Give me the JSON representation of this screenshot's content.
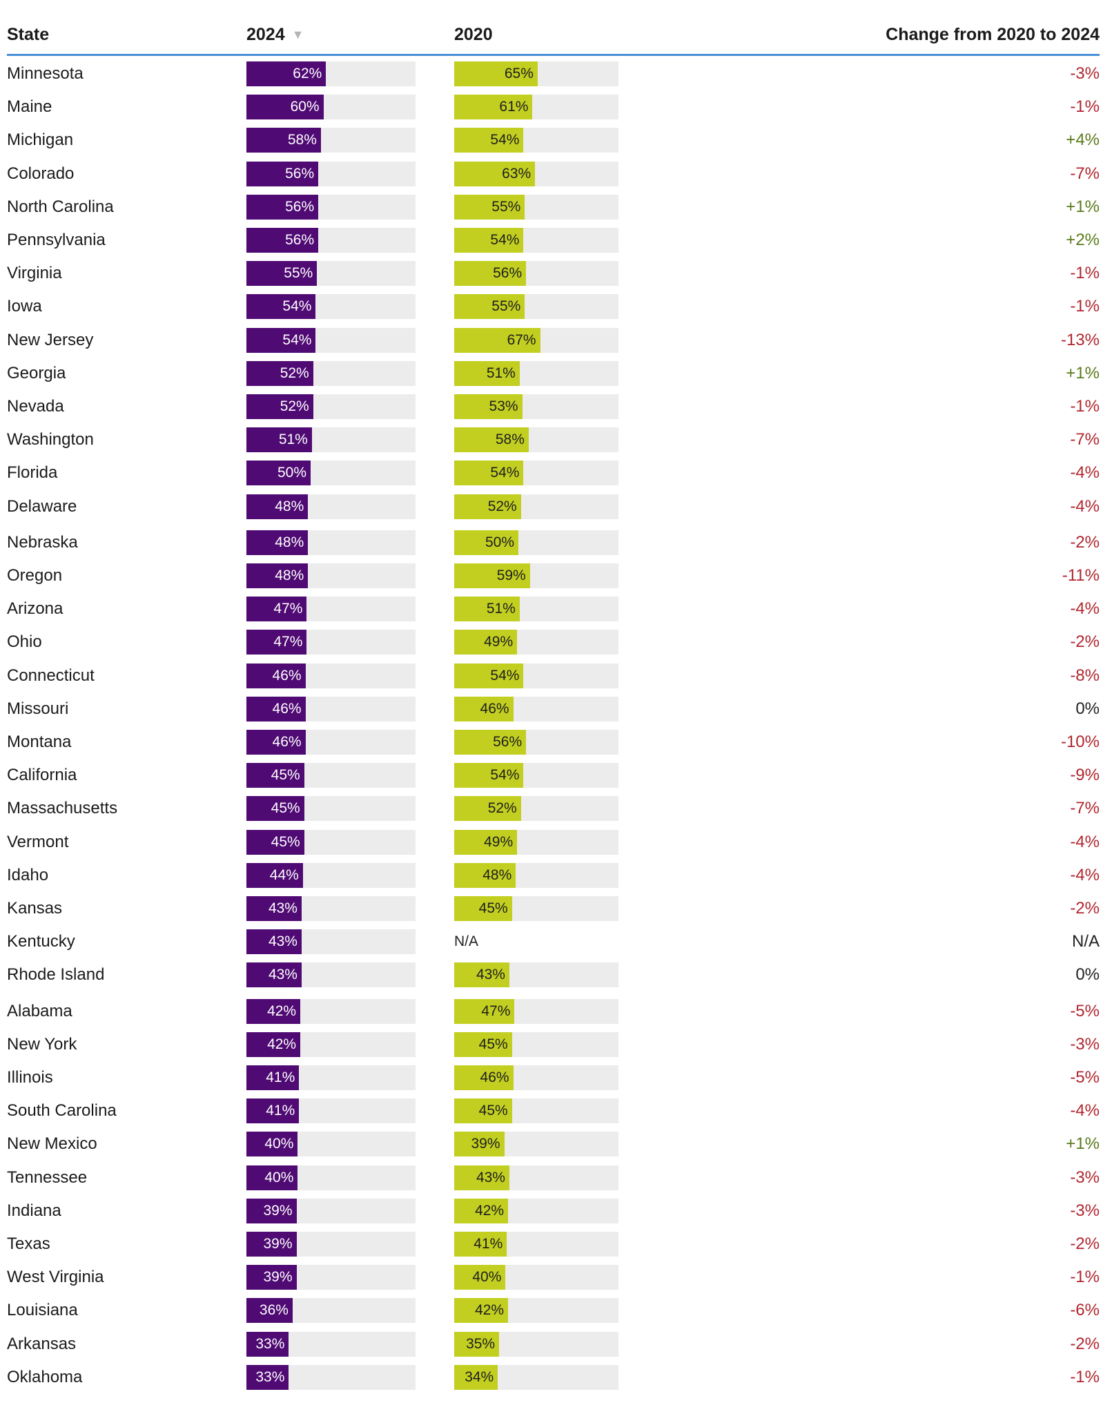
{
  "chart_data": {
    "type": "bar",
    "columns": {
      "state": "State",
      "y2024": "2024",
      "y2020": "2020",
      "change": "Change from 2020 to 2024"
    },
    "sort_indicator": "▼",
    "colors": {
      "bar_2024": "#4f0a73",
      "bar_2020": "#c2cf20",
      "track": "#ececec",
      "negative": "#b0262f",
      "positive": "#5a7a1a",
      "neutral": "#222222",
      "header_rule": "#4a90d9"
    },
    "rows": [
      {
        "state": "Minnesota",
        "v2024": 62,
        "v2020": 65,
        "l2024": "62%",
        "l2020": "65%",
        "change": "-3%"
      },
      {
        "state": "Maine",
        "v2024": 60,
        "v2020": 61,
        "l2024": "60%",
        "l2020": "61%",
        "change": "-1%"
      },
      {
        "state": "Michigan",
        "v2024": 58,
        "v2020": 54,
        "l2024": "58%",
        "l2020": "54%",
        "change": "+4%"
      },
      {
        "state": "Colorado",
        "v2024": 56,
        "v2020": 63,
        "l2024": "56%",
        "l2020": "63%",
        "change": "-7%"
      },
      {
        "state": "North Carolina",
        "v2024": 56,
        "v2020": 55,
        "l2024": "56%",
        "l2020": "55%",
        "change": "+1%"
      },
      {
        "state": "Pennsylvania",
        "v2024": 56,
        "v2020": 54,
        "l2024": "56%",
        "l2020": "54%",
        "change": "+2%"
      },
      {
        "state": "Virginia",
        "v2024": 55,
        "v2020": 56,
        "l2024": "55%",
        "l2020": "56%",
        "change": "-1%"
      },
      {
        "state": "Iowa",
        "v2024": 54,
        "v2020": 55,
        "l2024": "54%",
        "l2020": "55%",
        "change": "-1%"
      },
      {
        "state": "New Jersey",
        "v2024": 54,
        "v2020": 67,
        "l2024": "54%",
        "l2020": "67%",
        "change": "-13%"
      },
      {
        "state": "Georgia",
        "v2024": 52,
        "v2020": 51,
        "l2024": "52%",
        "l2020": "51%",
        "change": "+1%"
      },
      {
        "state": "Nevada",
        "v2024": 52,
        "v2020": 53,
        "l2024": "52%",
        "l2020": "53%",
        "change": "-1%"
      },
      {
        "state": "Washington",
        "v2024": 51,
        "v2020": 58,
        "l2024": "51%",
        "l2020": "58%",
        "change": "-7%"
      },
      {
        "state": "Florida",
        "v2024": 50,
        "v2020": 54,
        "l2024": "50%",
        "l2020": "54%",
        "change": "-4%"
      },
      {
        "state": "Delaware",
        "v2024": 48,
        "v2020": 52,
        "l2024": "48%",
        "l2020": "52%",
        "change": "-4%"
      },
      {
        "state": "Nebraska",
        "v2024": 48,
        "v2020": 50,
        "l2024": "48%",
        "l2020": "50%",
        "change": "-2%"
      },
      {
        "state": "Oregon",
        "v2024": 48,
        "v2020": 59,
        "l2024": "48%",
        "l2020": "59%",
        "change": "-11%"
      },
      {
        "state": "Arizona",
        "v2024": 47,
        "v2020": 51,
        "l2024": "47%",
        "l2020": "51%",
        "change": "-4%"
      },
      {
        "state": "Ohio",
        "v2024": 47,
        "v2020": 49,
        "l2024": "47%",
        "l2020": "49%",
        "change": "-2%"
      },
      {
        "state": "Connecticut",
        "v2024": 46,
        "v2020": 54,
        "l2024": "46%",
        "l2020": "54%",
        "change": "-8%"
      },
      {
        "state": "Missouri",
        "v2024": 46,
        "v2020": 46,
        "l2024": "46%",
        "l2020": "46%",
        "change": "0%"
      },
      {
        "state": "Montana",
        "v2024": 46,
        "v2020": 56,
        "l2024": "46%",
        "l2020": "56%",
        "change": "-10%"
      },
      {
        "state": "California",
        "v2024": 45,
        "v2020": 54,
        "l2024": "45%",
        "l2020": "54%",
        "change": "-9%"
      },
      {
        "state": "Massachusetts",
        "v2024": 45,
        "v2020": 52,
        "l2024": "45%",
        "l2020": "52%",
        "change": "-7%"
      },
      {
        "state": "Vermont",
        "v2024": 45,
        "v2020": 49,
        "l2024": "45%",
        "l2020": "49%",
        "change": "-4%"
      },
      {
        "state": "Idaho",
        "v2024": 44,
        "v2020": 48,
        "l2024": "44%",
        "l2020": "48%",
        "change": "-4%"
      },
      {
        "state": "Kansas",
        "v2024": 43,
        "v2020": 45,
        "l2024": "43%",
        "l2020": "45%",
        "change": "-2%"
      },
      {
        "state": "Kentucky",
        "v2024": 43,
        "v2020": null,
        "l2024": "43%",
        "l2020": "N/A",
        "change": "N/A"
      },
      {
        "state": "Rhode Island",
        "v2024": 43,
        "v2020": 43,
        "l2024": "43%",
        "l2020": "43%",
        "change": "0%"
      },
      {
        "state": "Alabama",
        "v2024": 42,
        "v2020": 47,
        "l2024": "42%",
        "l2020": "47%",
        "change": "-5%"
      },
      {
        "state": "New York",
        "v2024": 42,
        "v2020": 45,
        "l2024": "42%",
        "l2020": "45%",
        "change": "-3%"
      },
      {
        "state": "Illinois",
        "v2024": 41,
        "v2020": 46,
        "l2024": "41%",
        "l2020": "46%",
        "change": "-5%"
      },
      {
        "state": "South Carolina",
        "v2024": 41,
        "v2020": 45,
        "l2024": "41%",
        "l2020": "45%",
        "change": "-4%"
      },
      {
        "state": "New Mexico",
        "v2024": 40,
        "v2020": 39,
        "l2024": "40%",
        "l2020": "39%",
        "change": "+1%"
      },
      {
        "state": "Tennessee",
        "v2024": 40,
        "v2020": 43,
        "l2024": "40%",
        "l2020": "43%",
        "change": "-3%"
      },
      {
        "state": "Indiana",
        "v2024": 39,
        "v2020": 42,
        "l2024": "39%",
        "l2020": "42%",
        "change": "-3%"
      },
      {
        "state": "Texas",
        "v2024": 39,
        "v2020": 41,
        "l2024": "39%",
        "l2020": "41%",
        "change": "-2%"
      },
      {
        "state": "West Virginia",
        "v2024": 39,
        "v2020": 40,
        "l2024": "39%",
        "l2020": "40%",
        "change": "-1%"
      },
      {
        "state": "Louisiana",
        "v2024": 36,
        "v2020": 42,
        "l2024": "36%",
        "l2020": "42%",
        "change": "-6%"
      },
      {
        "state": "Arkansas",
        "v2024": 33,
        "v2020": 35,
        "l2024": "33%",
        "l2020": "35%",
        "change": "-2%"
      },
      {
        "state": "Oklahoma",
        "v2024": 33,
        "v2020": 34,
        "l2024": "33%",
        "l2020": "34%",
        "change": "-1%"
      }
    ]
  }
}
